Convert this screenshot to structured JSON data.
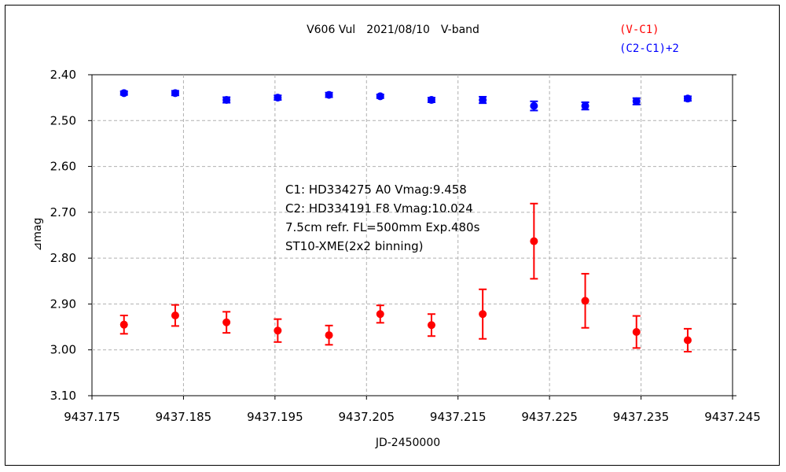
{
  "chart_data": {
    "type": "scatter",
    "title": "V606 Vul　2021/08/10　V-band",
    "xlabel": "JD-2450000",
    "ylabel": "⊿mag",
    "xlim": [
      9437.175,
      9437.245
    ],
    "ylim": [
      3.1,
      2.4
    ],
    "y_inverted": true,
    "x_ticks": [
      "9437.175",
      "9437.185",
      "9437.195",
      "9437.205",
      "9437.215",
      "9437.225",
      "9437.235",
      "9437.245"
    ],
    "x_tick_values": [
      9437.175,
      9437.185,
      9437.195,
      9437.205,
      9437.215,
      9437.225,
      9437.235,
      9437.245
    ],
    "y_ticks": [
      "2.40",
      "2.50",
      "2.60",
      "2.70",
      "2.80",
      "2.90",
      "3.00",
      "3.10"
    ],
    "y_tick_values": [
      2.4,
      2.5,
      2.6,
      2.7,
      2.8,
      2.9,
      3.0,
      3.1
    ],
    "grid": true,
    "legend_position": "top-right",
    "annotations": [
      "C1: HD334275 A0 Vmag:9.458",
      "C2: HD334191 F8  Vmag:10.024",
      "7.5cm refr. FL=500mm Exp.480s",
      "ST10-XME(2x2 binning)"
    ],
    "series": [
      {
        "name": "(V-C1)",
        "color": "#ff0000",
        "x": [
          9437.1785,
          9437.1841,
          9437.1897,
          9437.1953,
          9437.2009,
          9437.2065,
          9437.2121,
          9437.2177,
          9437.2233,
          9437.2289,
          9437.2345,
          9437.2401
        ],
        "y": [
          2.945,
          2.925,
          2.94,
          2.958,
          2.968,
          2.922,
          2.946,
          2.922,
          2.763,
          2.893,
          2.961,
          2.979
        ],
        "err": [
          0.02,
          0.023,
          0.023,
          0.025,
          0.021,
          0.019,
          0.024,
          0.054,
          0.082,
          0.059,
          0.035,
          0.025
        ]
      },
      {
        "name": "(C2-C1)+2",
        "color": "#0000ff",
        "x": [
          9437.1785,
          9437.1841,
          9437.1897,
          9437.1953,
          9437.2009,
          9437.2065,
          9437.2121,
          9437.2177,
          9437.2233,
          9437.2289,
          9437.2345,
          9437.2401
        ],
        "y": [
          2.44,
          2.44,
          2.455,
          2.45,
          2.444,
          2.447,
          2.455,
          2.455,
          2.468,
          2.468,
          2.458,
          2.452
        ],
        "err": [
          0.004,
          0.005,
          0.006,
          0.005,
          0.005,
          0.004,
          0.005,
          0.007,
          0.01,
          0.008,
          0.007,
          0.005
        ]
      }
    ]
  },
  "colors": {
    "red": "#ff0000",
    "blue": "#0000ff",
    "grid": "#b0b0b0"
  }
}
